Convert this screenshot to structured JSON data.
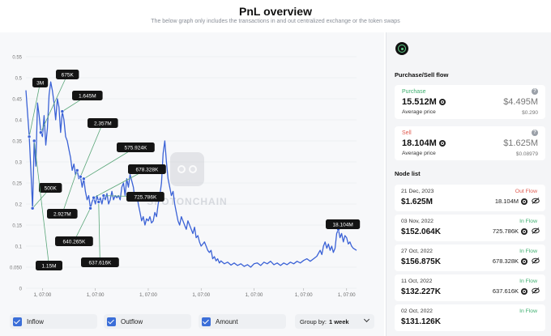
{
  "header": {
    "title": "PnL overview",
    "subtitle": "The below graph only includes the transactions in and out centralized exchange or the token swaps"
  },
  "chart_data": {
    "type": "line",
    "y_ticks": [
      "0.55",
      "0.5",
      "0.45",
      "0.4",
      "0.35",
      "0.3",
      "0.25",
      "0.2",
      "0.15",
      "0.1",
      "0.050",
      "0"
    ],
    "ylim": [
      0,
      0.55
    ],
    "x_ticks": [
      "1, 07:00",
      "1, 07:00",
      "1, 07:00",
      "1, 07:00",
      "1, 07:00",
      "1, 07:00",
      "1, 07:00"
    ],
    "line_color": "#3b62d6",
    "watermark": "SPOTONCHAIN",
    "series_points": [
      [
        0.0,
        0.47
      ],
      [
        0.01,
        0.36
      ],
      [
        0.015,
        0.28
      ],
      [
        0.02,
        0.19
      ],
      [
        0.025,
        0.35
      ],
      [
        0.03,
        0.29
      ],
      [
        0.035,
        0.44
      ],
      [
        0.04,
        0.41
      ],
      [
        0.045,
        0.37
      ],
      [
        0.05,
        0.36
      ],
      [
        0.055,
        0.41
      ],
      [
        0.06,
        0.34
      ],
      [
        0.065,
        0.38
      ],
      [
        0.07,
        0.46
      ],
      [
        0.075,
        0.49
      ],
      [
        0.08,
        0.47
      ],
      [
        0.085,
        0.44
      ],
      [
        0.09,
        0.4
      ],
      [
        0.095,
        0.45
      ],
      [
        0.1,
        0.43
      ],
      [
        0.105,
        0.37
      ],
      [
        0.11,
        0.42
      ],
      [
        0.115,
        0.4
      ],
      [
        0.12,
        0.36
      ],
      [
        0.125,
        0.35
      ],
      [
        0.13,
        0.33
      ],
      [
        0.135,
        0.31
      ],
      [
        0.14,
        0.28
      ],
      [
        0.145,
        0.295
      ],
      [
        0.15,
        0.27
      ],
      [
        0.155,
        0.28
      ],
      [
        0.16,
        0.26
      ],
      [
        0.165,
        0.265
      ],
      [
        0.17,
        0.24
      ],
      [
        0.175,
        0.26
      ],
      [
        0.18,
        0.23
      ],
      [
        0.185,
        0.21
      ],
      [
        0.19,
        0.22
      ],
      [
        0.195,
        0.19
      ],
      [
        0.2,
        0.205
      ],
      [
        0.205,
        0.215
      ],
      [
        0.21,
        0.2
      ],
      [
        0.215,
        0.22
      ],
      [
        0.22,
        0.205
      ],
      [
        0.225,
        0.215
      ],
      [
        0.23,
        0.2
      ],
      [
        0.235,
        0.22
      ],
      [
        0.24,
        0.21
      ],
      [
        0.245,
        0.225
      ],
      [
        0.25,
        0.2
      ],
      [
        0.255,
        0.21
      ],
      [
        0.26,
        0.23
      ],
      [
        0.265,
        0.21
      ],
      [
        0.27,
        0.22
      ],
      [
        0.275,
        0.215
      ],
      [
        0.28,
        0.22
      ],
      [
        0.285,
        0.21
      ],
      [
        0.29,
        0.24
      ],
      [
        0.295,
        0.25
      ],
      [
        0.3,
        0.22
      ],
      [
        0.305,
        0.26
      ],
      [
        0.31,
        0.24
      ],
      [
        0.315,
        0.27
      ],
      [
        0.32,
        0.255
      ],
      [
        0.325,
        0.24
      ],
      [
        0.33,
        0.21
      ],
      [
        0.335,
        0.225
      ],
      [
        0.34,
        0.2
      ],
      [
        0.345,
        0.18
      ],
      [
        0.35,
        0.16
      ],
      [
        0.355,
        0.17
      ],
      [
        0.36,
        0.15
      ],
      [
        0.365,
        0.165
      ],
      [
        0.37,
        0.16
      ],
      [
        0.375,
        0.17
      ],
      [
        0.38,
        0.155
      ],
      [
        0.385,
        0.16
      ],
      [
        0.39,
        0.18
      ],
      [
        0.395,
        0.17
      ],
      [
        0.4,
        0.2
      ],
      [
        0.405,
        0.22
      ],
      [
        0.41,
        0.25
      ],
      [
        0.415,
        0.32
      ],
      [
        0.42,
        0.35
      ],
      [
        0.425,
        0.3
      ],
      [
        0.43,
        0.26
      ],
      [
        0.435,
        0.24
      ],
      [
        0.44,
        0.22
      ],
      [
        0.445,
        0.23
      ],
      [
        0.45,
        0.2
      ],
      [
        0.455,
        0.18
      ],
      [
        0.46,
        0.16
      ],
      [
        0.465,
        0.15
      ],
      [
        0.47,
        0.17
      ],
      [
        0.475,
        0.16
      ],
      [
        0.48,
        0.15
      ],
      [
        0.485,
        0.14
      ],
      [
        0.49,
        0.16
      ],
      [
        0.495,
        0.15
      ],
      [
        0.5,
        0.14
      ],
      [
        0.505,
        0.13
      ],
      [
        0.51,
        0.145
      ],
      [
        0.515,
        0.12
      ],
      [
        0.52,
        0.125
      ],
      [
        0.525,
        0.11
      ],
      [
        0.53,
        0.1
      ],
      [
        0.535,
        0.105
      ],
      [
        0.54,
        0.11
      ],
      [
        0.545,
        0.1
      ],
      [
        0.55,
        0.09
      ],
      [
        0.555,
        0.085
      ],
      [
        0.56,
        0.09
      ],
      [
        0.565,
        0.07
      ],
      [
        0.57,
        0.075
      ],
      [
        0.575,
        0.065
      ],
      [
        0.58,
        0.07
      ],
      [
        0.585,
        0.06
      ],
      [
        0.59,
        0.065
      ],
      [
        0.6,
        0.058
      ],
      [
        0.61,
        0.062
      ],
      [
        0.62,
        0.055
      ],
      [
        0.63,
        0.06
      ],
      [
        0.64,
        0.054
      ],
      [
        0.65,
        0.058
      ],
      [
        0.66,
        0.052
      ],
      [
        0.67,
        0.056
      ],
      [
        0.68,
        0.05
      ],
      [
        0.69,
        0.058
      ],
      [
        0.7,
        0.06
      ],
      [
        0.71,
        0.054
      ],
      [
        0.72,
        0.062
      ],
      [
        0.73,
        0.058
      ],
      [
        0.74,
        0.064
      ],
      [
        0.75,
        0.056
      ],
      [
        0.76,
        0.06
      ],
      [
        0.77,
        0.054
      ],
      [
        0.78,
        0.06
      ],
      [
        0.79,
        0.056
      ],
      [
        0.8,
        0.062
      ],
      [
        0.81,
        0.058
      ],
      [
        0.82,
        0.064
      ],
      [
        0.83,
        0.06
      ],
      [
        0.84,
        0.066
      ],
      [
        0.85,
        0.07
      ],
      [
        0.86,
        0.064
      ],
      [
        0.87,
        0.07
      ],
      [
        0.88,
        0.076
      ],
      [
        0.89,
        0.09
      ],
      [
        0.895,
        0.08
      ],
      [
        0.9,
        0.1
      ],
      [
        0.905,
        0.11
      ],
      [
        0.91,
        0.095
      ],
      [
        0.915,
        0.105
      ],
      [
        0.92,
        0.09
      ],
      [
        0.925,
        0.1
      ],
      [
        0.93,
        0.085
      ],
      [
        0.935,
        0.095
      ],
      [
        0.94,
        0.13
      ],
      [
        0.945,
        0.14
      ],
      [
        0.95,
        0.12
      ],
      [
        0.955,
        0.13
      ],
      [
        0.96,
        0.11
      ],
      [
        0.965,
        0.125
      ],
      [
        0.97,
        0.12
      ],
      [
        0.975,
        0.105
      ],
      [
        0.98,
        0.11
      ],
      [
        0.985,
        0.1
      ],
      [
        0.99,
        0.095
      ],
      [
        1.0,
        0.09
      ]
    ],
    "annotations": [
      {
        "label": "3M",
        "t": 0.01
      },
      {
        "label": "675K",
        "t": 0.045
      },
      {
        "label": "1.645M",
        "t": 0.11
      },
      {
        "label": "2.357M",
        "t": 0.165
      },
      {
        "label": "500K",
        "t": 0.02
      },
      {
        "label": "575.924K",
        "t": 0.175
      },
      {
        "label": "678.328K",
        "t": 0.205
      },
      {
        "label": "2.927M",
        "t": 0.155
      },
      {
        "label": "725.786K",
        "t": 0.235
      },
      {
        "label": "640.265K",
        "t": 0.195
      },
      {
        "label": "637.616K",
        "t": 0.22
      },
      {
        "label": "1.15M",
        "t": 0.025
      },
      {
        "label": "18.104M",
        "t": 0.945
      }
    ]
  },
  "toolbar": {
    "inflow_label": "Inflow",
    "outflow_label": "Outflow",
    "amount_label": "Amount",
    "group_by_label": "Group by:",
    "group_by_value": "1 week"
  },
  "side": {
    "flow_title": "Purchase/Sell flow",
    "purchase": {
      "label": "Purchase",
      "amount": "15.512M",
      "usd": "$4.495M",
      "avg_label": "Average price",
      "avg_value": "$0.290"
    },
    "sell": {
      "label": "Sell",
      "amount": "18.104M",
      "usd": "$1.625M",
      "avg_label": "Average price",
      "avg_value": "$0.08979"
    },
    "node_title": "Node list",
    "nodes": [
      {
        "date": "21 Dec, 2023",
        "usd": "$1.625M",
        "type": "Out Flow",
        "qty": "18.104M",
        "dir": "out"
      },
      {
        "date": "03 Nov, 2022",
        "usd": "$152.064K",
        "type": "In Flow",
        "qty": "725.786K",
        "dir": "in"
      },
      {
        "date": "27 Oct, 2022",
        "usd": "$156.875K",
        "type": "In Flow",
        "qty": "678.328K",
        "dir": "in"
      },
      {
        "date": "11 Oct, 2022",
        "usd": "$132.227K",
        "type": "In Flow",
        "qty": "637.616K",
        "dir": "in"
      },
      {
        "date": "02 Oct, 2022",
        "usd": "$131.126K",
        "type": "In Flow",
        "qty": "",
        "dir": "in"
      }
    ]
  },
  "colors": {
    "accent": "#3b6ed8",
    "line": "#3b62d6",
    "purchase": "#3dae6e",
    "sell": "#e05a4f",
    "callout_bg": "#141414",
    "connector": "#5aa679"
  }
}
